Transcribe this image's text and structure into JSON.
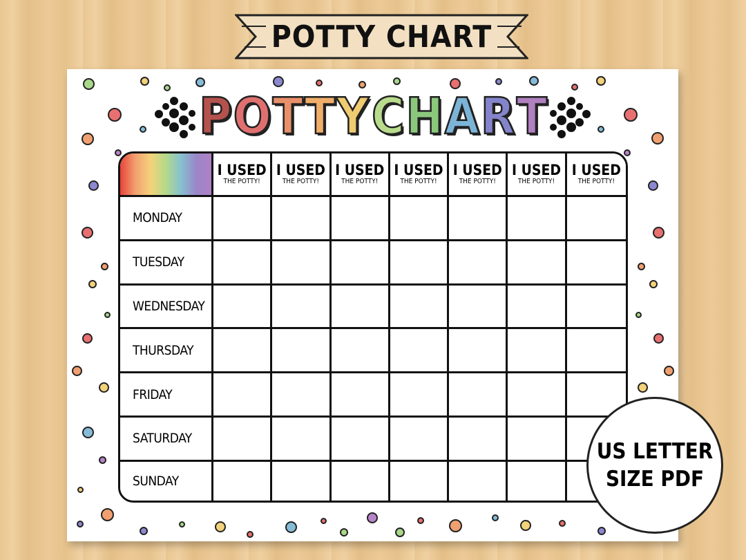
{
  "banner": {
    "title": "POTTY CHART"
  },
  "chart": {
    "title_letters": [
      {
        "char": "P",
        "color": "#b5524e"
      },
      {
        "char": "O",
        "color": "#e07070"
      },
      {
        "char": "T",
        "color": "#e8906a"
      },
      {
        "char": "T",
        "color": "#f0ae6a"
      },
      {
        "char": "Y",
        "color": "#f0cc70"
      },
      {
        "char": " ",
        "color": "#ffffff"
      },
      {
        "char": "C",
        "color": "#b8dc8c"
      },
      {
        "char": "H",
        "color": "#8cc87c"
      },
      {
        "char": "A",
        "color": "#7cb4d8"
      },
      {
        "char": "R",
        "color": "#8484cc"
      },
      {
        "char": "T",
        "color": "#b080c0"
      }
    ],
    "column_header": {
      "line1": "I USED",
      "line2": "THE POTTY!"
    },
    "column_count": 7,
    "days": [
      "MONDAY",
      "TUESDAY",
      "WEDNESDAY",
      "THURSDAY",
      "FRIDAY",
      "SATURDAY",
      "SUNDAY"
    ],
    "dot_colors": [
      "#e87070",
      "#f0a070",
      "#f2d27a",
      "#a8d88a",
      "#86bcd8",
      "#8c88d0",
      "#b884c8"
    ]
  },
  "badge": {
    "line1": "US LETTER",
    "line2": "SIZE PDF"
  }
}
